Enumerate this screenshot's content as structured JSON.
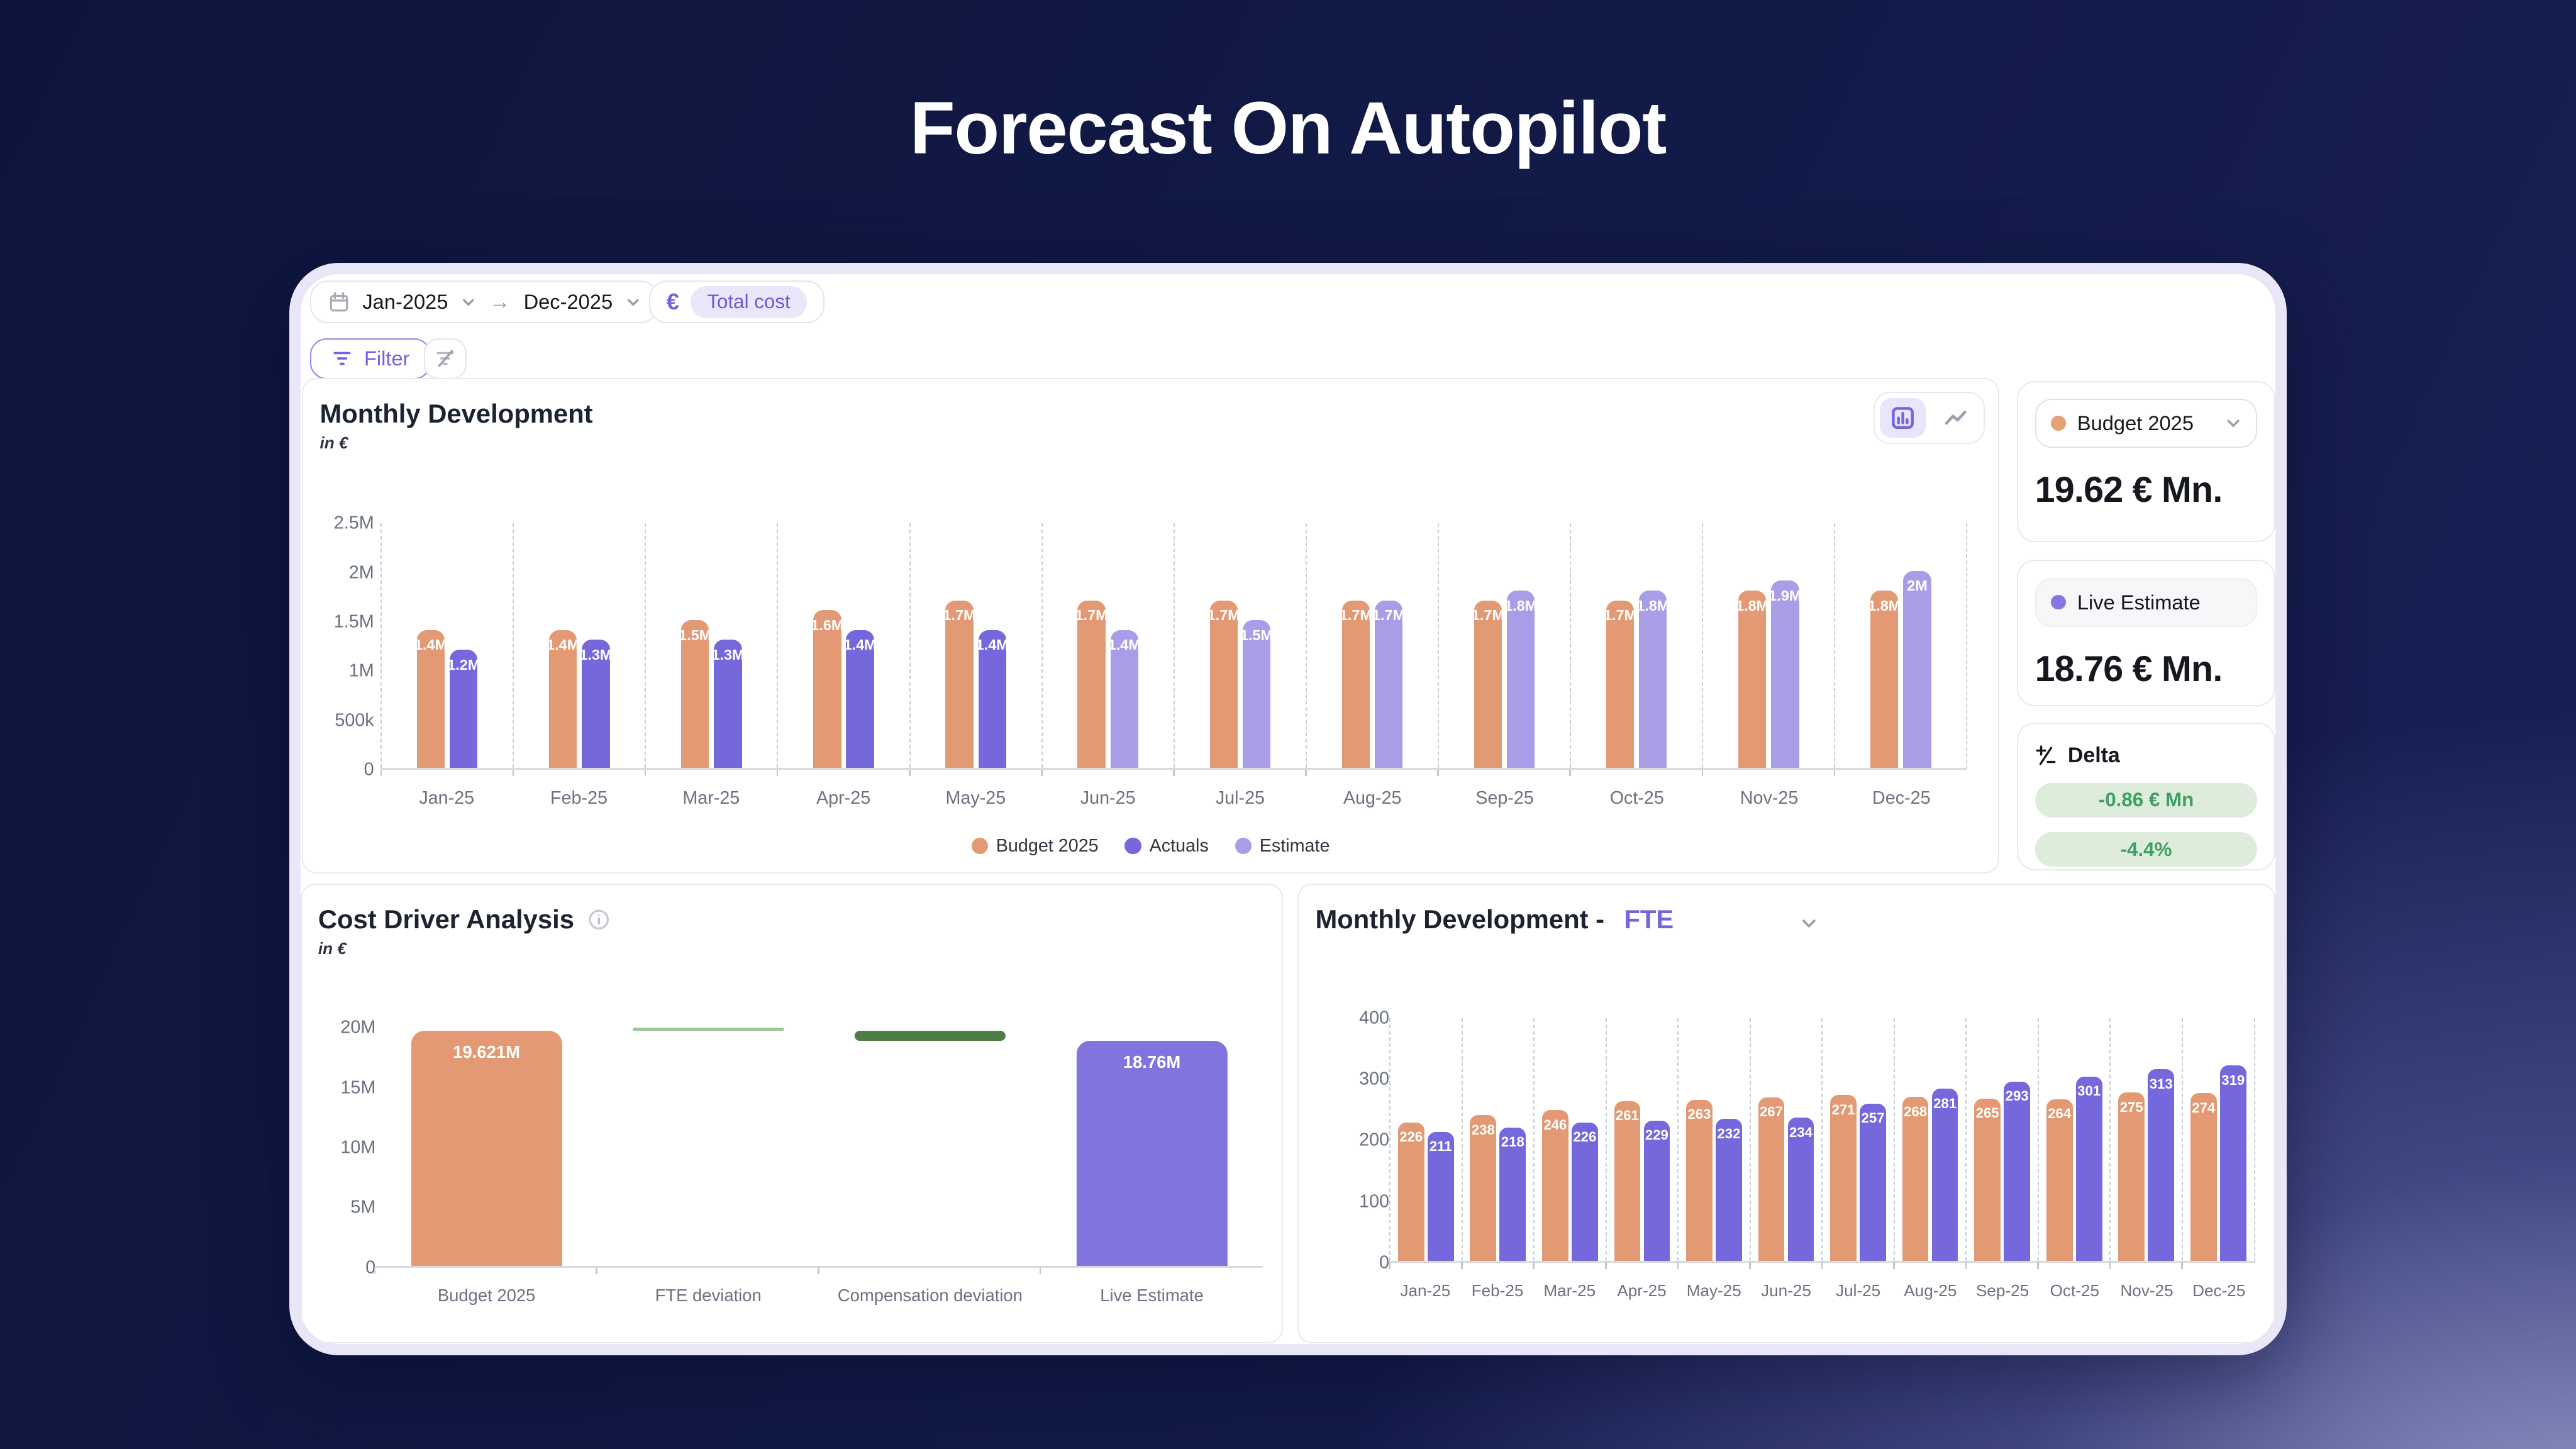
{
  "page_title": "Forecast On Autopilot",
  "toolbar": {
    "date_from": "Jan-2025",
    "date_to": "Dec-2025",
    "range_arrow": "→",
    "currency_symbol": "€",
    "cost_type_chip": "Total cost",
    "filter_label": "Filter"
  },
  "colors": {
    "budget_orange": "#E39A74",
    "actuals_purple": "#7567DC",
    "estimate_light_purple": "#A89EE8",
    "waterfall_purple": "#8174DF",
    "fte_deviation_light_green": "#9CC79A",
    "compensation_deviation_dark_green": "#4E7E46",
    "delta_green_text": "#3f9e63",
    "delta_green_bg": "#ddecdb",
    "accent_purple": "#7265dd"
  },
  "sidebar": {
    "budget": {
      "label": "Budget 2025",
      "value": "19.62 € Mn."
    },
    "live": {
      "label": "Live Estimate",
      "value": "18.76 € Mn."
    },
    "delta": {
      "title": "Delta",
      "abs": "-0.86 € Mn",
      "pct": "-4.4%"
    }
  },
  "chart_data": [
    {
      "id": "monthly-development",
      "type": "bar",
      "title": "Monthly Development",
      "subtitle": "in €",
      "unit": "€",
      "ymax": 2.5,
      "ylim": [
        0,
        2500000
      ],
      "grid": "dashed-vertical",
      "legend_position": "bottom",
      "yticks": [
        "2.5M",
        "2M",
        "1.5M",
        "1M",
        "500k",
        "0"
      ],
      "categories": [
        "Jan-25",
        "Feb-25",
        "Mar-25",
        "Apr-25",
        "May-25",
        "Jun-25",
        "Jul-25",
        "Aug-25",
        "Sep-25",
        "Oct-25",
        "Nov-25",
        "Dec-25"
      ],
      "series": [
        {
          "name": "Budget 2025",
          "color": "#E39A74",
          "values": [
            1.4,
            1.4,
            1.5,
            1.6,
            1.7,
            1.7,
            1.7,
            1.7,
            1.7,
            1.7,
            1.8,
            1.8
          ],
          "labels": [
            "1.4M",
            "1.4M",
            "1.5M",
            "1.6M",
            "1.7M",
            "1.7M",
            "1.7M",
            "1.7M",
            "1.7M",
            "1.7M",
            "1.8M",
            "1.8M"
          ]
        },
        {
          "name": "Actuals",
          "color": "#7567DC",
          "values": [
            1.2,
            1.3,
            1.3,
            1.4,
            1.4,
            null,
            null,
            null,
            null,
            null,
            null,
            null
          ],
          "labels": [
            "1.2M",
            "1.3M",
            "1.3M",
            "1.4M",
            "1.4M",
            "",
            "",
            "",
            "",
            "",
            "",
            ""
          ]
        },
        {
          "name": "Estimate",
          "color": "#A89EE8",
          "values": [
            null,
            null,
            null,
            null,
            null,
            1.4,
            1.5,
            1.7,
            1.8,
            1.8,
            1.9,
            2
          ],
          "labels": [
            "",
            "",
            "",
            "",
            "",
            "1.4M",
            "1.5M",
            "1.7M",
            "1.8M",
            "1.8M",
            "1.9M",
            "2M"
          ]
        }
      ]
    },
    {
      "id": "cost-driver-analysis",
      "type": "waterfall",
      "title": "Cost Driver Analysis",
      "subtitle": "in €",
      "ymax": 20,
      "ylim": [
        0,
        20000000
      ],
      "grid": "none",
      "yticks": [
        "20M",
        "15M",
        "10M",
        "5M",
        "0"
      ],
      "categories": [
        "Budget 2025",
        "FTE deviation",
        "Compensation deviation",
        "Live Estimate"
      ],
      "bars": [
        {
          "category": "Budget 2025",
          "from": 0,
          "to": 19.621,
          "color": "#E39A74",
          "label": "19.621M"
        },
        {
          "category": "FTE deviation",
          "from": 19.6,
          "to": 19.66,
          "color": "#9CC79A",
          "label": ""
        },
        {
          "category": "Compensation deviation",
          "from": 18.76,
          "to": 19.6,
          "color": "#4E7E46",
          "label": ""
        },
        {
          "category": "Live Estimate",
          "from": 0,
          "to": 18.76,
          "color": "#8174DF",
          "label": "18.76M"
        }
      ]
    },
    {
      "id": "monthly-development-fte",
      "type": "bar",
      "title_prefix": "Monthly Development -",
      "title_metric": "FTE",
      "ymax": 400,
      "ylim": [
        0,
        400
      ],
      "grid": "dashed-vertical",
      "yticks": [
        "400",
        "300",
        "200",
        "100",
        "0"
      ],
      "categories": [
        "Jan-25",
        "Feb-25",
        "Mar-25",
        "Apr-25",
        "May-25",
        "Jun-25",
        "Jul-25",
        "Aug-25",
        "Sep-25",
        "Oct-25",
        "Nov-25",
        "Dec-25"
      ],
      "series": [
        {
          "name": "Budget 2025",
          "color": "#E39A74",
          "values": [
            226,
            238,
            246,
            261,
            263,
            267,
            271,
            268,
            265,
            264,
            275,
            274
          ]
        },
        {
          "name": "Live Estimate",
          "color": "#7567DC",
          "values": [
            211,
            218,
            226,
            229,
            232,
            234,
            257,
            281,
            293,
            301,
            313,
            319
          ]
        }
      ]
    }
  ]
}
